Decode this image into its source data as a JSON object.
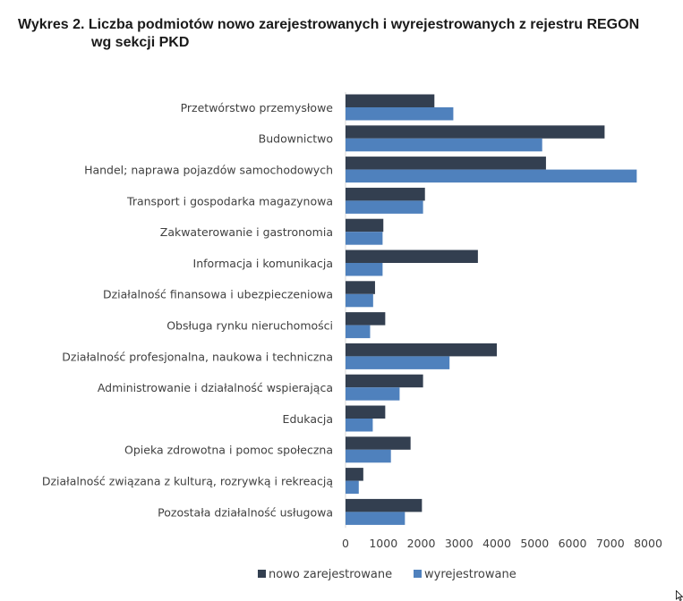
{
  "header": {
    "title_line1": "Wykres 2. Liczba podmiotów nowo zarejestrowanych i wyrejestrowanych z rejestru REGON",
    "title_line2": "wg sekcji PKD"
  },
  "chart_data": {
    "type": "bar",
    "orientation": "horizontal",
    "title": "Wykres 2. Liczba podmiotów nowo zarejestrowanych i wyrejestrowanych z rejestru REGON wg sekcji PKD",
    "categories": [
      "Przetwórstwo przemysłowe",
      "Budownictwo",
      "Handel; naprawa pojazdów samochodowych",
      "Transport i gospodarka magazynowa",
      "Zakwaterowanie i gastronomia",
      "Informacja i komunikacja",
      "Działalność finansowa i ubezpieczeniowa",
      "Obsługa rynku nieruchomości",
      "Działalność profesjonalna, naukowa i techniczna",
      "Administrowanie i działalność wspierająca",
      "Edukacja",
      "Opieka zdrowotna i pomoc społeczna",
      "Działalność związana z kulturą, rozrywką i rekreacją",
      "Pozostała działalność usługowa"
    ],
    "series": [
      {
        "name": "nowo zarejestrowane",
        "color": "#333f50",
        "values": [
          2350,
          6850,
          5300,
          2100,
          1000,
          3500,
          780,
          1050,
          4000,
          2050,
          1050,
          1720,
          470,
          2020
        ]
      },
      {
        "name": "wyrejestrowane",
        "color": "#4f81bd",
        "values": [
          2850,
          5200,
          7700,
          2050,
          980,
          980,
          730,
          650,
          2750,
          1430,
          720,
          1200,
          350,
          1570
        ]
      }
    ],
    "xlim": [
      0,
      8000
    ],
    "xticks": [
      "0",
      "1000",
      "2000",
      "3000",
      "4000",
      "5000",
      "6000",
      "7000",
      "8000"
    ],
    "grid": false,
    "legend_position": "bottom"
  }
}
